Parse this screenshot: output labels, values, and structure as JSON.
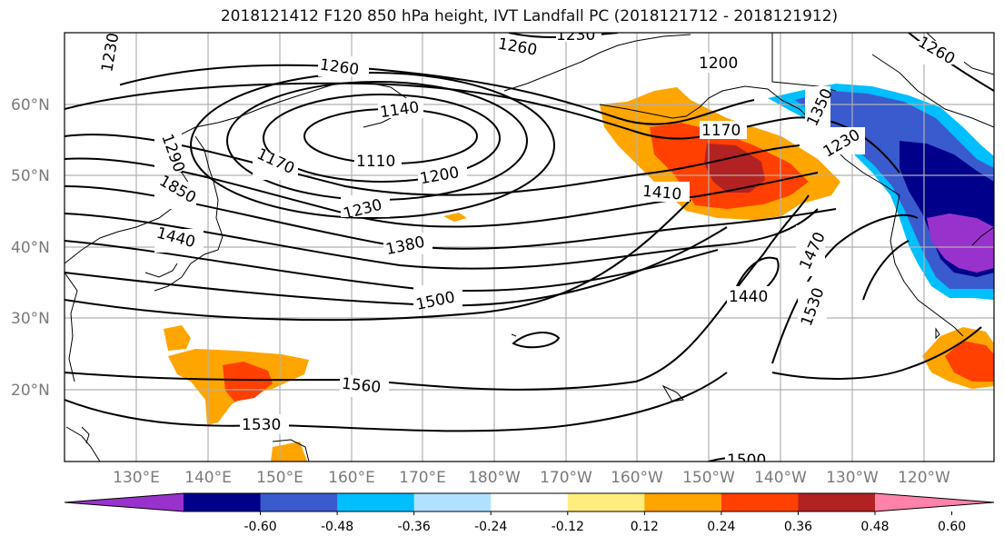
{
  "title": "2018121412 F120 850 hPa height, IVT Landfall PC (2018121712 - 2018121912)",
  "lat_labels": [
    "60°N",
    "50°N",
    "40°N",
    "30°N",
    "20°N"
  ],
  "lon_labels": [
    "130°E",
    "140°E",
    "150°E",
    "160°E",
    "170°E",
    "180°W",
    "170°W",
    "160°W",
    "150°W",
    "140°W",
    "130°W",
    "120°W"
  ],
  "colorbar": {
    "ticks": [
      "-0.60",
      "-0.48",
      "-0.36",
      "-0.24",
      "-0.12",
      "0.12",
      "0.24",
      "0.36",
      "0.48",
      "0.60"
    ],
    "colors": [
      "#9932cc",
      "#00008b",
      "#3a5bcd",
      "#00bfff",
      "#b0e2ff",
      "#ffffff",
      "#ffed80",
      "#ffa500",
      "#ff4000",
      "#b22222",
      "#ff82ab"
    ]
  },
  "contour_labels": [
    "1260",
    "1230",
    "1260",
    "1200",
    "1260",
    "1230",
    "1290",
    "1140",
    "1110",
    "1170",
    "1170",
    "1850",
    "1200",
    "1230",
    "1440",
    "1380",
    "1410",
    "1470",
    "1500",
    "1440",
    "1530",
    "1560",
    "1530",
    "1500",
    "1350",
    "1230"
  ],
  "fills": {
    "orange": "#ffa500",
    "red": "#ff4000",
    "darkred": "#b22222",
    "navy": "#00008b",
    "blue": "#3a5bcd",
    "cyan": "#00bfff",
    "purple": "#9932cc",
    "yellow": "#ffed80"
  }
}
